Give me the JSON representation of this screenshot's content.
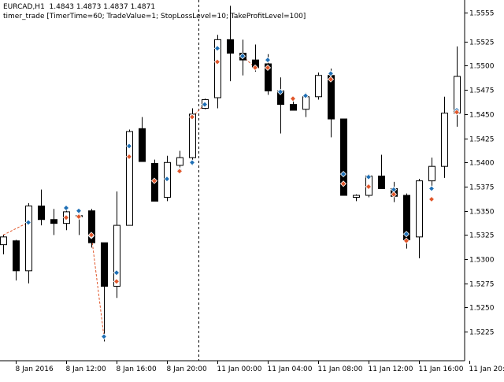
{
  "header": {
    "symbol_line": "EURCAD,H1  1.4843 1.4873 1.4837 1.4871",
    "indicator_line": "timer_trade [TimerTime=60; TradeValue=1; StopLossLevel=10; TakeProfitLevel=100]"
  },
  "colors": {
    "background": "#ffffff",
    "bull_body": "#ffffff",
    "bear_body": "#000000",
    "candle_outline": "#000000",
    "buy_arrow": "#1e6fb5",
    "sell_arrow": "#e0562a",
    "trade_line": "#e0562a",
    "separator": "#000000"
  },
  "chart_data": {
    "type": "candlestick",
    "symbol": "EURCAD",
    "timeframe": "H1",
    "y_ticks": [
      "1.5555",
      "1.5525",
      "1.5500",
      "1.5475",
      "1.5450",
      "1.5425",
      "1.5400",
      "1.5375",
      "1.5350",
      "1.5325",
      "1.5300",
      "1.5275",
      "1.5250",
      "1.5225"
    ],
    "ylim": [
      1.5195,
      1.5568
    ],
    "x_ticks": [
      {
        "label": "8 Jan 2016",
        "bar": 1
      },
      {
        "label": "8 Jan 12:00",
        "bar": 5
      },
      {
        "label": "8 Jan 16:00",
        "bar": 9
      },
      {
        "label": "8 Jan 20:00",
        "bar": 13
      },
      {
        "label": "11 Jan 00:00",
        "bar": 17
      },
      {
        "label": "11 Jan 04:00",
        "bar": 21
      },
      {
        "label": "11 Jan 08:00",
        "bar": 25
      },
      {
        "label": "11 Jan 12:00",
        "bar": 29
      },
      {
        "label": "11 Jan 16:00",
        "bar": 33
      },
      {
        "label": "11 Jan 20:00",
        "bar": 37
      }
    ],
    "separator_after_bar": 15.5,
    "candles": [
      {
        "o": 1.5315,
        "h": 1.5325,
        "l": 1.5305,
        "c": 1.5323
      },
      {
        "o": 1.5319,
        "h": 1.532,
        "l": 1.5278,
        "c": 1.5288
      },
      {
        "o": 1.5288,
        "h": 1.5358,
        "l": 1.5275,
        "c": 1.5355
      },
      {
        "o": 1.5355,
        "h": 1.5372,
        "l": 1.5335,
        "c": 1.5341
      },
      {
        "o": 1.5341,
        "h": 1.5352,
        "l": 1.5325,
        "c": 1.5337
      },
      {
        "o": 1.5337,
        "h": 1.5352,
        "l": 1.533,
        "c": 1.5349
      },
      {
        "o": 1.5345,
        "h": 1.5347,
        "l": 1.5325,
        "c": 1.5344
      },
      {
        "o": 1.535,
        "h": 1.5352,
        "l": 1.5312,
        "c": 1.5317
      },
      {
        "o": 1.5317,
        "h": 1.5315,
        "l": 1.5215,
        "c": 1.5272
      },
      {
        "o": 1.5272,
        "h": 1.537,
        "l": 1.526,
        "c": 1.5335
      },
      {
        "o": 1.5335,
        "h": 1.5434,
        "l": 1.5335,
        "c": 1.5432
      },
      {
        "o": 1.5435,
        "h": 1.5447,
        "l": 1.5401,
        "c": 1.5401
      },
      {
        "o": 1.5399,
        "h": 1.5403,
        "l": 1.5362,
        "c": 1.536
      },
      {
        "o": 1.5364,
        "h": 1.5407,
        "l": 1.536,
        "c": 1.54
      },
      {
        "o": 1.5397,
        "h": 1.5412,
        "l": 1.539,
        "c": 1.5405
      },
      {
        "o": 1.5405,
        "h": 1.5456,
        "l": 1.5397,
        "c": 1.545
      },
      {
        "o": 1.5456,
        "h": 1.5466,
        "l": 1.5455,
        "c": 1.5465
      },
      {
        "o": 1.5467,
        "h": 1.5532,
        "l": 1.5456,
        "c": 1.5527
      },
      {
        "o": 1.5527,
        "h": 1.5562,
        "l": 1.5484,
        "c": 1.5513
      },
      {
        "o": 1.5513,
        "h": 1.5527,
        "l": 1.549,
        "c": 1.5506
      },
      {
        "o": 1.5506,
        "h": 1.5522,
        "l": 1.5494,
        "c": 1.5498
      },
      {
        "o": 1.5502,
        "h": 1.5512,
        "l": 1.547,
        "c": 1.5474
      },
      {
        "o": 1.5474,
        "h": 1.5488,
        "l": 1.543,
        "c": 1.546
      },
      {
        "o": 1.546,
        "h": 1.5463,
        "l": 1.5455,
        "c": 1.5454
      },
      {
        "o": 1.5455,
        "h": 1.5472,
        "l": 1.5447,
        "c": 1.5468
      },
      {
        "o": 1.5468,
        "h": 1.5493,
        "l": 1.5465,
        "c": 1.549
      },
      {
        "o": 1.549,
        "h": 1.5497,
        "l": 1.5426,
        "c": 1.5445
      },
      {
        "o": 1.5445,
        "h": 1.5445,
        "l": 1.5366,
        "c": 1.5366
      },
      {
        "o": 1.5364,
        "h": 1.5367,
        "l": 1.536,
        "c": 1.5366
      },
      {
        "o": 1.5366,
        "h": 1.5388,
        "l": 1.5364,
        "c": 1.5386
      },
      {
        "o": 1.5386,
        "h": 1.5408,
        "l": 1.5374,
        "c": 1.5373
      },
      {
        "o": 1.5373,
        "h": 1.538,
        "l": 1.5359,
        "c": 1.5365
      },
      {
        "o": 1.5366,
        "h": 1.5368,
        "l": 1.5311,
        "c": 1.532
      },
      {
        "o": 1.5323,
        "h": 1.5383,
        "l": 1.5301,
        "c": 1.5381
      },
      {
        "o": 1.5381,
        "h": 1.5405,
        "l": 1.5375,
        "c": 1.5396
      },
      {
        "o": 1.5396,
        "h": 1.5468,
        "l": 1.5384,
        "c": 1.5451
      },
      {
        "o": 1.5451,
        "h": 1.552,
        "l": 1.5437,
        "c": 1.5489
      }
    ],
    "buy_arrows": [
      {
        "bar": 2,
        "price": 1.5338
      },
      {
        "bar": 5,
        "price": 1.5353
      },
      {
        "bar": 6,
        "price": 1.535
      },
      {
        "bar": 7,
        "price": 1.5324
      },
      {
        "bar": 8,
        "price": 1.522
      },
      {
        "bar": 9,
        "price": 1.5286
      },
      {
        "bar": 10,
        "price": 1.5417
      },
      {
        "bar": 13,
        "price": 1.5383
      },
      {
        "bar": 14,
        "price": 1.5392
      },
      {
        "bar": 15,
        "price": 1.54
      },
      {
        "bar": 16,
        "price": 1.546
      },
      {
        "bar": 17,
        "price": 1.5518
      },
      {
        "bar": 19,
        "price": 1.551
      },
      {
        "bar": 21,
        "price": 1.5506
      },
      {
        "bar": 22,
        "price": 1.5473
      },
      {
        "bar": 24,
        "price": 1.5469
      },
      {
        "bar": 26,
        "price": 1.5492
      },
      {
        "bar": 27,
        "price": 1.5388
      },
      {
        "bar": 29,
        "price": 1.5385
      },
      {
        "bar": 31,
        "price": 1.5372
      },
      {
        "bar": 32,
        "price": 1.5326
      },
      {
        "bar": 34,
        "price": 1.5373
      },
      {
        "bar": 36,
        "price": 1.5454
      }
    ],
    "sell_arrows": [
      {
        "bar": 5,
        "price": 1.5343
      },
      {
        "bar": 6,
        "price": 1.5344
      },
      {
        "bar": 7,
        "price": 1.5325
      },
      {
        "bar": 9,
        "price": 1.5277
      },
      {
        "bar": 10,
        "price": 1.5406
      },
      {
        "bar": 12,
        "price": 1.5381
      },
      {
        "bar": 14,
        "price": 1.5391
      },
      {
        "bar": 15,
        "price": 1.5447
      },
      {
        "bar": 17,
        "price": 1.5504
      },
      {
        "bar": 20,
        "price": 1.5498
      },
      {
        "bar": 21,
        "price": 1.5498
      },
      {
        "bar": 23,
        "price": 1.5466
      },
      {
        "bar": 26,
        "price": 1.5486
      },
      {
        "bar": 27,
        "price": 1.5378
      },
      {
        "bar": 29,
        "price": 1.5375
      },
      {
        "bar": 31,
        "price": 1.5367
      },
      {
        "bar": 32,
        "price": 1.5319
      },
      {
        "bar": 34,
        "price": 1.5362
      },
      {
        "bar": 36,
        "price": 1.5452
      }
    ],
    "trade_lines": [
      {
        "from": {
          "bar": 0,
          "price": 1.5325
        },
        "to": {
          "bar": 2,
          "price": 1.5338
        }
      },
      {
        "from": {
          "bar": 7,
          "price": 1.5325
        },
        "to": {
          "bar": 8,
          "price": 1.522
        }
      },
      {
        "from": {
          "bar": 15,
          "price": 1.5447
        },
        "to": {
          "bar": 16,
          "price": 1.546
        }
      },
      {
        "from": {
          "bar": 19,
          "price": 1.551
        },
        "to": {
          "bar": 20,
          "price": 1.5498
        }
      }
    ]
  }
}
